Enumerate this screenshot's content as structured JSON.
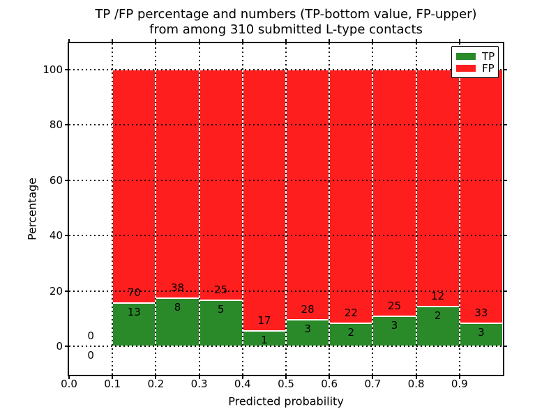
{
  "chart_data": {
    "type": "bar",
    "stacked": true,
    "normalized": "each bar scaled to 100%",
    "title_line1": "TP /FP percentage and numbers (TP-bottom value, FP-upper)",
    "title_line2": "from among 310 submitted L-type contacts",
    "xlabel": "Predicted probability",
    "ylabel": "Percentage",
    "x_tick_labels": [
      "0.0",
      "0.1",
      "0.2",
      "0.3",
      "0.4",
      "0.5",
      "0.6",
      "0.7",
      "0.8",
      "0.9"
    ],
    "y_tick_values": [
      0,
      20,
      40,
      60,
      80,
      100
    ],
    "y_tick_labels": [
      "0",
      "20",
      "40",
      "60",
      "80",
      "100"
    ],
    "xlim": [
      0.0,
      1.0
    ],
    "ylim": [
      -10,
      110
    ],
    "bin_width": 0.1,
    "bin_starts": [
      0.0,
      0.1,
      0.2,
      0.3,
      0.4,
      0.5,
      0.6,
      0.7,
      0.8,
      0.9
    ],
    "series": [
      {
        "name": "TP",
        "color": "#2a8a2a",
        "counts": [
          0,
          13,
          8,
          5,
          1,
          3,
          2,
          3,
          2,
          3
        ]
      },
      {
        "name": "FP",
        "color": "#ff1e1e",
        "counts": [
          0,
          70,
          38,
          25,
          17,
          28,
          22,
          25,
          12,
          33
        ]
      }
    ],
    "tp_percent_by_bin": [
      0.0,
      15.7,
      17.4,
      16.7,
      5.6,
      9.7,
      8.3,
      10.7,
      14.3,
      8.3
    ],
    "total_contacts": 310,
    "grid": "dotted, both axes, drawn above bars",
    "legend": {
      "position": "upper right",
      "entries": [
        "TP",
        "FP"
      ]
    }
  }
}
